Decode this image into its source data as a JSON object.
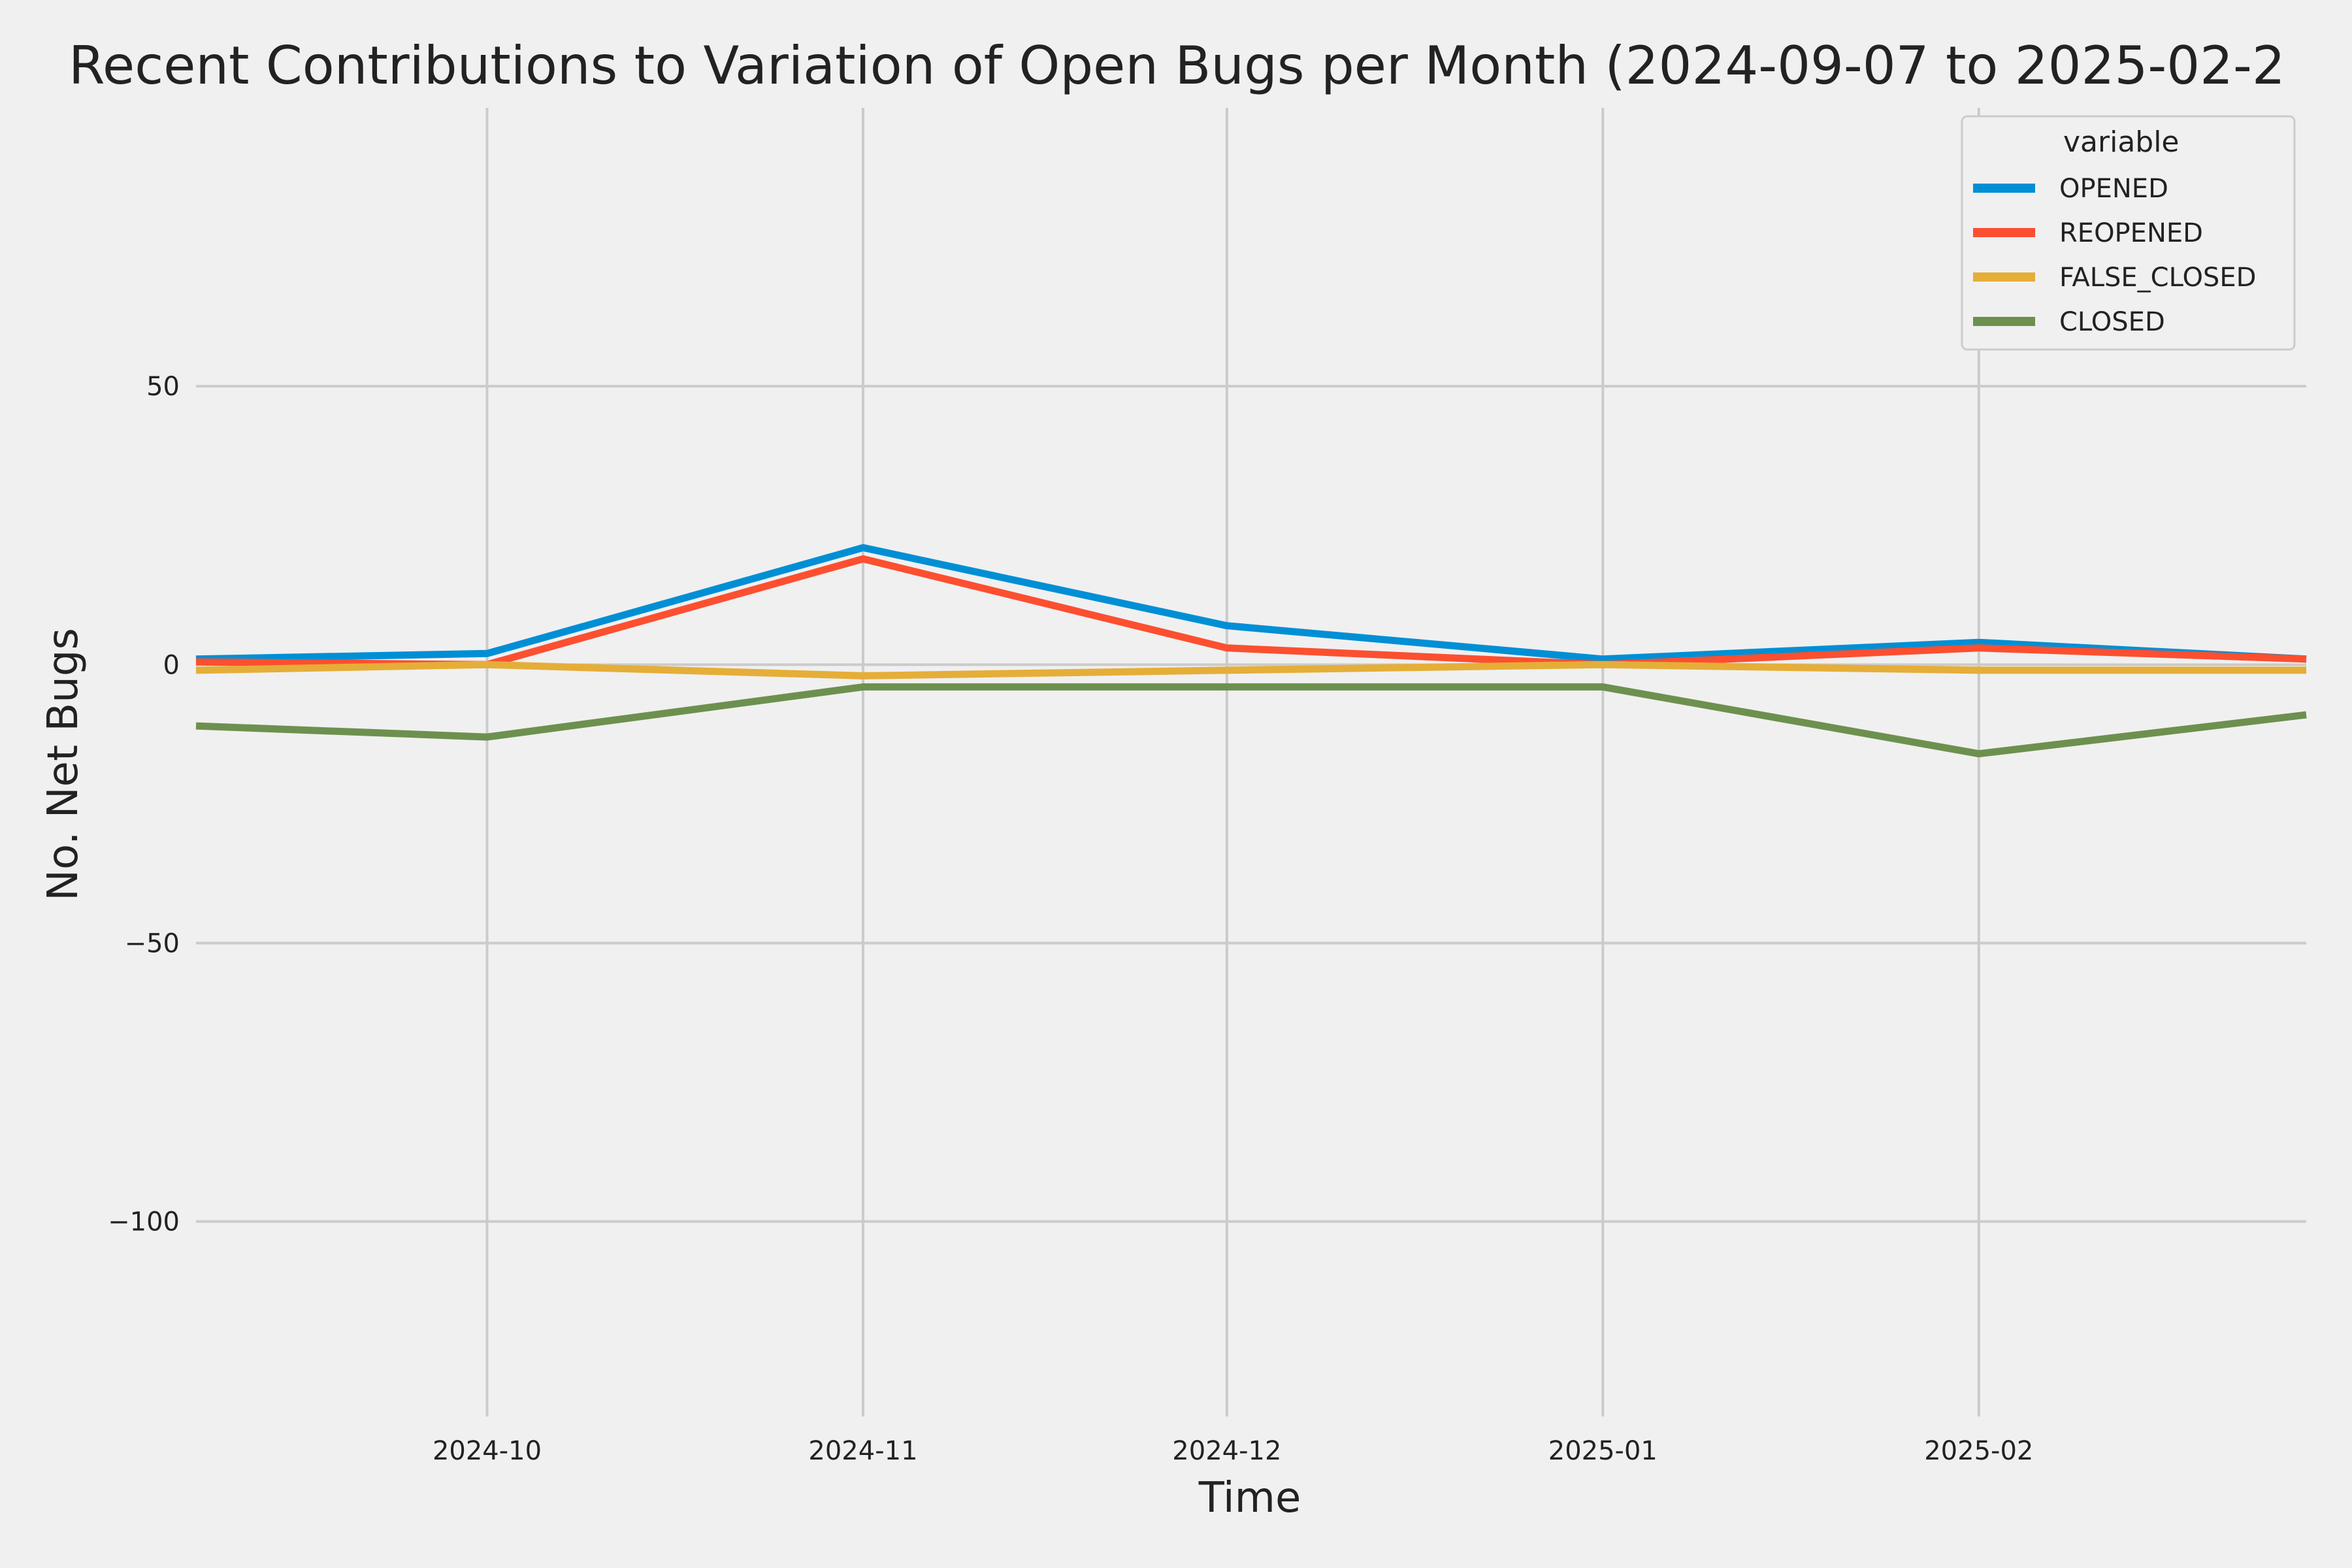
{
  "chart_data": {
    "type": "line",
    "title": "Recent Contributions to Variation of Open Bugs per Month (2024-09-07 to 2025-02-2",
    "xlabel": "Time",
    "ylabel": "No. Net Bugs",
    "x": [
      "2024-09-07",
      "2024-10-01",
      "2024-11-01",
      "2024-12-01",
      "2025-01-01",
      "2025-02-01",
      "2025-02-28"
    ],
    "xlim": [
      "2024-09-07",
      "2025-02-28"
    ],
    "ylim": [
      -135,
      100
    ],
    "x_ticks": [
      {
        "date": "2024-10-01",
        "label": "2024-10"
      },
      {
        "date": "2024-11-01",
        "label": "2024-11"
      },
      {
        "date": "2024-12-01",
        "label": "2024-12"
      },
      {
        "date": "2025-01-01",
        "label": "2025-01"
      },
      {
        "date": "2025-02-01",
        "label": "2025-02"
      }
    ],
    "y_ticks": [
      {
        "value": 50,
        "label": "50"
      },
      {
        "value": 0,
        "label": "0"
      },
      {
        "value": -50,
        "label": "−50"
      },
      {
        "value": -100,
        "label": "−100"
      }
    ],
    "grid": true,
    "legend": {
      "title": "variable",
      "position": "top-right"
    },
    "series": [
      {
        "name": "OPENED",
        "color": "#008fd5",
        "values": [
          1,
          2,
          21,
          7,
          1,
          4,
          1
        ]
      },
      {
        "name": "REOPENED",
        "color": "#fc4f30",
        "values": [
          0.5,
          0,
          19,
          3,
          0,
          3,
          1
        ]
      },
      {
        "name": "FALSE_CLOSED",
        "color": "#e5ae38",
        "values": [
          -1,
          0,
          -2,
          -1,
          0,
          -1,
          -1
        ]
      },
      {
        "name": "CLOSED",
        "color": "#6d904f",
        "values": [
          -11,
          -13,
          -4,
          -4,
          -4,
          -16,
          -9
        ]
      }
    ]
  }
}
